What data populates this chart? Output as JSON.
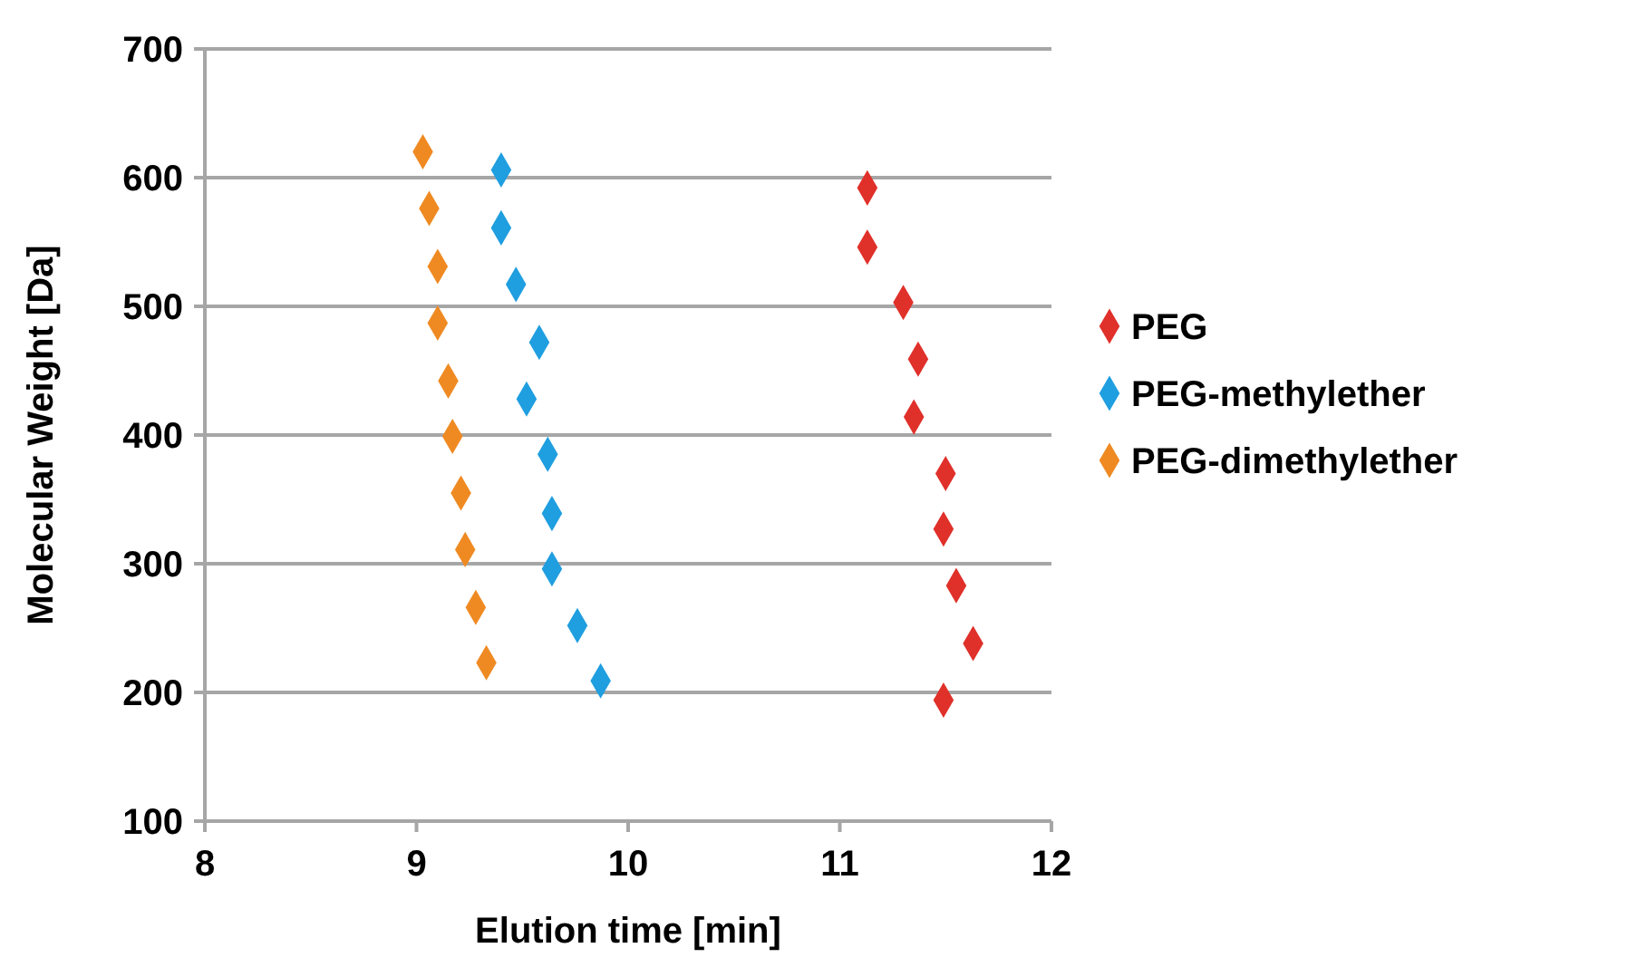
{
  "chart_data": {
    "type": "scatter",
    "xlabel": "Elution time [min]",
    "ylabel": "Molecular Weight [Da]",
    "xlim": [
      8,
      12
    ],
    "xticks": [
      8,
      9,
      10,
      11,
      12
    ],
    "ylim": [
      100,
      700
    ],
    "yticks": [
      100,
      200,
      300,
      400,
      500,
      600,
      700
    ],
    "grid": "y",
    "legend": "right",
    "marker": "diamond",
    "series": [
      {
        "name": "PEG",
        "color": "#e0302a",
        "x": [
          11.13,
          11.13,
          11.3,
          11.37,
          11.35,
          11.5,
          11.49,
          11.55,
          11.63,
          11.49
        ],
        "values": [
          592,
          546,
          503,
          459,
          414,
          370,
          327,
          283,
          238,
          194
        ]
      },
      {
        "name": "PEG-methylether",
        "color": "#1f9ee0",
        "x": [
          9.4,
          9.4,
          9.47,
          9.58,
          9.52,
          9.62,
          9.64,
          9.64,
          9.76,
          9.87
        ],
        "values": [
          606,
          561,
          517,
          472,
          428,
          385,
          339,
          296,
          252,
          209
        ]
      },
      {
        "name": "PEG-dimethylether",
        "color": "#ef8a22",
        "x": [
          9.03,
          9.06,
          9.1,
          9.1,
          9.15,
          9.17,
          9.21,
          9.23,
          9.28,
          9.33
        ],
        "values": [
          620,
          576,
          531,
          487,
          442,
          399,
          355,
          311,
          266,
          223
        ]
      }
    ]
  }
}
